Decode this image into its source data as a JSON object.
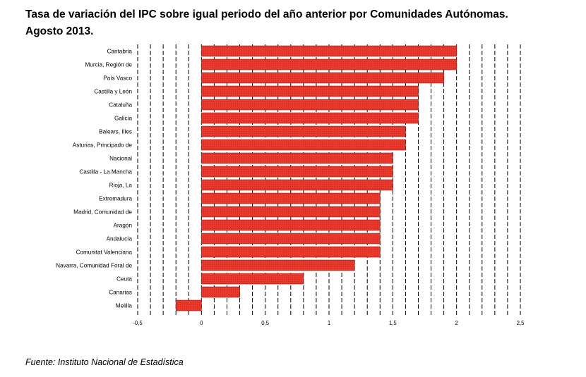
{
  "title_line1": "Tasa de variación del IPC sobre igual periodo del año anterior por Comunidades Autónomas.",
  "title_line2": "Agosto 2013.",
  "source": "Fuente: Instituto Nacional de Estadística",
  "chart_data": {
    "type": "bar",
    "orientation": "horizontal",
    "title": "Tasa de variación del IPC sobre igual periodo del año anterior por Comunidades Autónomas. Agosto 2013.",
    "categories": [
      "Cantabria",
      "Murcia, Región de",
      "País Vasco",
      "Castilla y León",
      "Cataluña",
      "Galicia",
      "Balears, Illes",
      "Asturias, Principado de",
      "Nacional",
      "Castilla - La Mancha",
      "Rioja, La",
      "Extremadura",
      "Madrid, Comunidad de",
      "Aragón",
      "Andalucía",
      "Comunitat Valenciana",
      "Navarra, Comunidad Foral de",
      "Ceuta",
      "Canarias",
      "Melilla"
    ],
    "values": [
      2.0,
      2.0,
      1.9,
      1.7,
      1.7,
      1.7,
      1.6,
      1.6,
      1.5,
      1.5,
      1.5,
      1.4,
      1.4,
      1.4,
      1.4,
      1.4,
      1.2,
      0.8,
      0.3,
      -0.2
    ],
    "xlim": [
      -0.5,
      2.5
    ],
    "xticks": [
      -0.5,
      0,
      0.5,
      1,
      1.5,
      2,
      2.5
    ],
    "xtick_labels": [
      "-0,5",
      "0",
      "0,5",
      "1",
      "1,5",
      "2",
      "2,5"
    ],
    "grid": "vertical dashed",
    "bar_color": "#e8392c"
  }
}
